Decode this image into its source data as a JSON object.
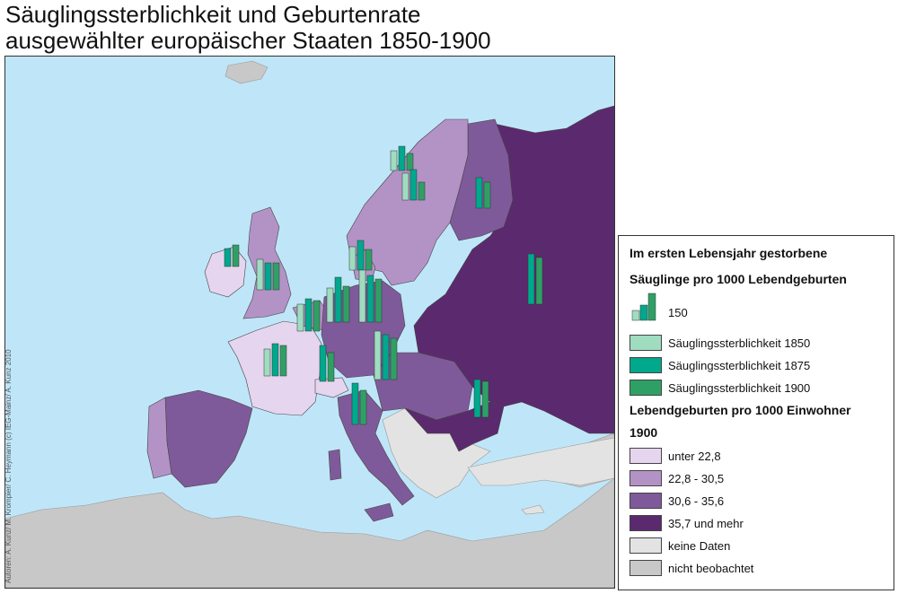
{
  "title": {
    "line1": "Säuglingssterblichkeit und Geburtenrate",
    "line2": "ausgewählter europäischer Staaten 1850-1900"
  },
  "credit": "Autoren: A. Kunz/ M. Krompier/ C. Heymann (c) IEG-Mainz/ A. Kunz 2010",
  "colors": {
    "sea": "#bfe6f8",
    "infant_1850": "#9fdcc0",
    "infant_1875": "#00a88c",
    "infant_1900": "#2fa065",
    "birth_under_22_8": "#e6d5ef",
    "birth_22_8_30_5": "#b393c6",
    "birth_30_6_35_6": "#7f5a9a",
    "birth_35_7_plus": "#5b2a6e",
    "keine_daten": "#e3e3e3",
    "nicht_beobachtet": "#c8c8c8"
  },
  "legend": {
    "heading1": "Im ersten Lebensjahr gestorbene",
    "heading2": "Säuglinge pro 1000  Lebendgeburten",
    "scale_value": "150",
    "bar_items": [
      {
        "label": "Säuglingssterblichkeit 1850",
        "color": "#9fdcc0"
      },
      {
        "label": "Säuglingssterblichkeit 1875",
        "color": "#00a88c"
      },
      {
        "label": "Säuglingssterblichkeit 1900",
        "color": "#2fa065"
      }
    ],
    "heading3": "Lebendgeburten pro 1000 Einwohner",
    "heading4": "1900",
    "class_items": [
      {
        "label": " unter 22,8",
        "color": "#e6d5ef"
      },
      {
        "label": "22,8 - 30,5",
        "color": "#b393c6"
      },
      {
        "label": "30,6 - 35,6",
        "color": "#7f5a9a"
      },
      {
        "label": "35,7 und mehr",
        "color": "#5b2a6e"
      },
      {
        "label": "keine Daten",
        "color": "#e3e3e3"
      },
      {
        "label": "nicht beobachtet",
        "color": "#c8c8c8"
      }
    ]
  }
}
